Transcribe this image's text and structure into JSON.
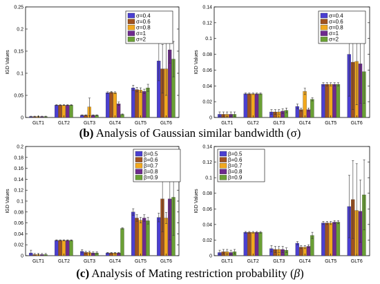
{
  "figure": {
    "caption_b": {
      "label": "(b)",
      "text": "Analysis of Gaussian similar bandwidth (σ)"
    },
    "caption_c": {
      "label": "(c)",
      "text": "Analysis of Mating restriction probability (",
      "param": "β",
      "close": ")"
    }
  },
  "chart_data": [
    {
      "type": "bar",
      "panel": "b-left",
      "ylabel": "IGD Values",
      "xlabel": "",
      "ylim": [
        0,
        0.25
      ],
      "yticks": [
        0,
        0.05,
        0.1,
        0.15,
        0.2,
        0.25
      ],
      "ytick_labels": [
        "0",
        "0.05",
        "0.1",
        "0.15",
        "0.2",
        "0.25"
      ],
      "categories": [
        "GLT1",
        "GLT2",
        "GLT3",
        "GLT4",
        "GLT5",
        "GLT6"
      ],
      "legend_position": "top-right",
      "series": [
        {
          "name": "σ=0.4",
          "color": "#4b3fd1",
          "values": [
            0.002,
            0.028,
            0.005,
            0.056,
            0.067,
            0.128
          ],
          "errors": [
            0.001,
            0.001,
            0.001,
            0.002,
            0.006,
            0.045
          ]
        },
        {
          "name": "σ=0.6",
          "color": "#a0521f",
          "values": [
            0.002,
            0.028,
            0.005,
            0.057,
            0.063,
            0.11
          ],
          "errors": [
            0.001,
            0.001,
            0.001,
            0.002,
            0.005,
            0.055
          ]
        },
        {
          "name": "σ=0.8",
          "color": "#f2a81e",
          "values": [
            0.002,
            0.028,
            0.024,
            0.056,
            0.062,
            0.11
          ],
          "errors": [
            0.001,
            0.001,
            0.02,
            0.002,
            0.005,
            0.06
          ]
        },
        {
          "name": "σ=1",
          "color": "#6e2a8e",
          "values": [
            0.002,
            0.028,
            0.005,
            0.031,
            0.059,
            0.153
          ],
          "errors": [
            0.001,
            0.001,
            0.001,
            0.004,
            0.005,
            0.03
          ]
        },
        {
          "name": "σ=2",
          "color": "#6aa035",
          "values": [
            0.002,
            0.028,
            0.005,
            0.007,
            0.067,
            0.132
          ],
          "errors": [
            0.001,
            0.001,
            0.001,
            0.001,
            0.008,
            0.04
          ]
        }
      ]
    },
    {
      "type": "bar",
      "panel": "b-right",
      "ylabel": "IGD Values",
      "xlabel": "",
      "ylim": [
        0,
        0.14
      ],
      "yticks": [
        0,
        0.02,
        0.04,
        0.06,
        0.08,
        0.1,
        0.12,
        0.14
      ],
      "ytick_labels": [
        "0",
        "0.02",
        "0.04",
        "0.06",
        "0.08",
        "0.1",
        "0.12",
        "0.14"
      ],
      "categories": [
        "GLT1",
        "GLT2",
        "GLT3",
        "GLT4",
        "GLT5",
        "GLT6"
      ],
      "legend_position": "top-right",
      "series": [
        {
          "name": "σ=0.4",
          "color": "#4b3fd1",
          "values": [
            0.004,
            0.03,
            0.007,
            0.014,
            0.042,
            0.08
          ],
          "errors": [
            0.003,
            0.001,
            0.003,
            0.003,
            0.002,
            0.053
          ]
        },
        {
          "name": "σ=0.6",
          "color": "#a0521f",
          "values": [
            0.004,
            0.03,
            0.007,
            0.01,
            0.042,
            0.07
          ],
          "errors": [
            0.003,
            0.001,
            0.003,
            0.002,
            0.002,
            0.06
          ]
        },
        {
          "name": "σ=0.8",
          "color": "#f2a81e",
          "values": [
            0.004,
            0.03,
            0.007,
            0.033,
            0.042,
            0.071
          ],
          "errors": [
            0.003,
            0.001,
            0.003,
            0.004,
            0.002,
            0.055
          ]
        },
        {
          "name": "σ=1",
          "color": "#6e2a8e",
          "values": [
            0.004,
            0.03,
            0.008,
            0.01,
            0.042,
            0.068
          ],
          "errors": [
            0.003,
            0.001,
            0.003,
            0.002,
            0.002,
            0.05
          ]
        },
        {
          "name": "σ=2",
          "color": "#6aa035",
          "values": [
            0.004,
            0.03,
            0.009,
            0.023,
            0.042,
            0.058
          ],
          "errors": [
            0.003,
            0.001,
            0.003,
            0.002,
            0.002,
            0.04
          ]
        }
      ]
    },
    {
      "type": "bar",
      "panel": "c-left",
      "ylabel": "IGD Values",
      "xlabel": "",
      "ylim": [
        0,
        0.2
      ],
      "yticks": [
        0,
        0.02,
        0.04,
        0.06,
        0.08,
        0.1,
        0.12,
        0.14,
        0.16,
        0.18,
        0.2
      ],
      "ytick_labels": [
        "0",
        "0.02",
        "0.04",
        "0.06",
        "0.08",
        "0.1",
        "0.12",
        "0.14",
        "0.16",
        "0.18",
        "0.2"
      ],
      "categories": [
        "GLT1",
        "GLT2",
        "GLT3",
        "GLT4",
        "GLT5",
        "GLT6"
      ],
      "legend_position": "top-right",
      "series": [
        {
          "name": "β=0.5",
          "color": "#4b3fd1",
          "values": [
            0.005,
            0.028,
            0.008,
            0.005,
            0.08,
            0.07
          ],
          "errors": [
            0.005,
            0.001,
            0.003,
            0.001,
            0.006,
            0.008
          ]
        },
        {
          "name": "β=0.6",
          "color": "#a0521f",
          "values": [
            0.002,
            0.028,
            0.006,
            0.005,
            0.069,
            0.104
          ],
          "errors": [
            0.002,
            0.001,
            0.002,
            0.001,
            0.006,
            0.06
          ]
        },
        {
          "name": "β=0.7",
          "color": "#f2a81e",
          "values": [
            0.002,
            0.028,
            0.006,
            0.005,
            0.065,
            0.069
          ],
          "errors": [
            0.002,
            0.001,
            0.002,
            0.001,
            0.005,
            0.01
          ]
        },
        {
          "name": "β=0.8",
          "color": "#6e2a8e",
          "values": [
            0.002,
            0.028,
            0.005,
            0.005,
            0.069,
            0.104
          ],
          "errors": [
            0.002,
            0.001,
            0.002,
            0.001,
            0.006,
            0.075
          ]
        },
        {
          "name": "β=0.9",
          "color": "#6aa035",
          "values": [
            0.002,
            0.028,
            0.005,
            0.05,
            0.064,
            0.107
          ],
          "errors": [
            0.002,
            0.001,
            0.002,
            0.001,
            0.006,
            0.07
          ]
        }
      ]
    },
    {
      "type": "bar",
      "panel": "c-right",
      "ylabel": "IGD Values",
      "xlabel": "",
      "ylim": [
        0,
        0.14
      ],
      "yticks": [
        0,
        0.02,
        0.04,
        0.06,
        0.08,
        0.1,
        0.12,
        0.14
      ],
      "ytick_labels": [
        "0",
        "0.02",
        "0.04",
        "0.06",
        "0.08",
        "0.1",
        "0.12",
        "0.14"
      ],
      "categories": [
        "GLT1",
        "GLT2",
        "GLT3",
        "GLT4",
        "GLT5",
        "GLT6"
      ],
      "legend_position": "top-left",
      "series": [
        {
          "name": "β=0.5",
          "color": "#4b3fd1",
          "values": [
            0.004,
            0.03,
            0.009,
            0.016,
            0.042,
            0.063
          ],
          "errors": [
            0.003,
            0.001,
            0.004,
            0.002,
            0.002,
            0.04
          ]
        },
        {
          "name": "β=0.6",
          "color": "#a0521f",
          "values": [
            0.005,
            0.03,
            0.008,
            0.011,
            0.042,
            0.072
          ],
          "errors": [
            0.003,
            0.001,
            0.004,
            0.002,
            0.002,
            0.05
          ]
        },
        {
          "name": "β=0.7",
          "color": "#f2a81e",
          "values": [
            0.005,
            0.03,
            0.008,
            0.011,
            0.042,
            0.058
          ],
          "errors": [
            0.003,
            0.001,
            0.004,
            0.002,
            0.002,
            0.06
          ]
        },
        {
          "name": "β=0.8",
          "color": "#6e2a8e",
          "values": [
            0.004,
            0.03,
            0.008,
            0.012,
            0.043,
            0.057
          ],
          "errors": [
            0.003,
            0.001,
            0.004,
            0.002,
            0.002,
            0.04
          ]
        },
        {
          "name": "β=0.9",
          "color": "#6aa035",
          "values": [
            0.005,
            0.03,
            0.007,
            0.026,
            0.043,
            0.078
          ],
          "errors": [
            0.003,
            0.001,
            0.003,
            0.004,
            0.002,
            0.045
          ]
        }
      ]
    }
  ]
}
